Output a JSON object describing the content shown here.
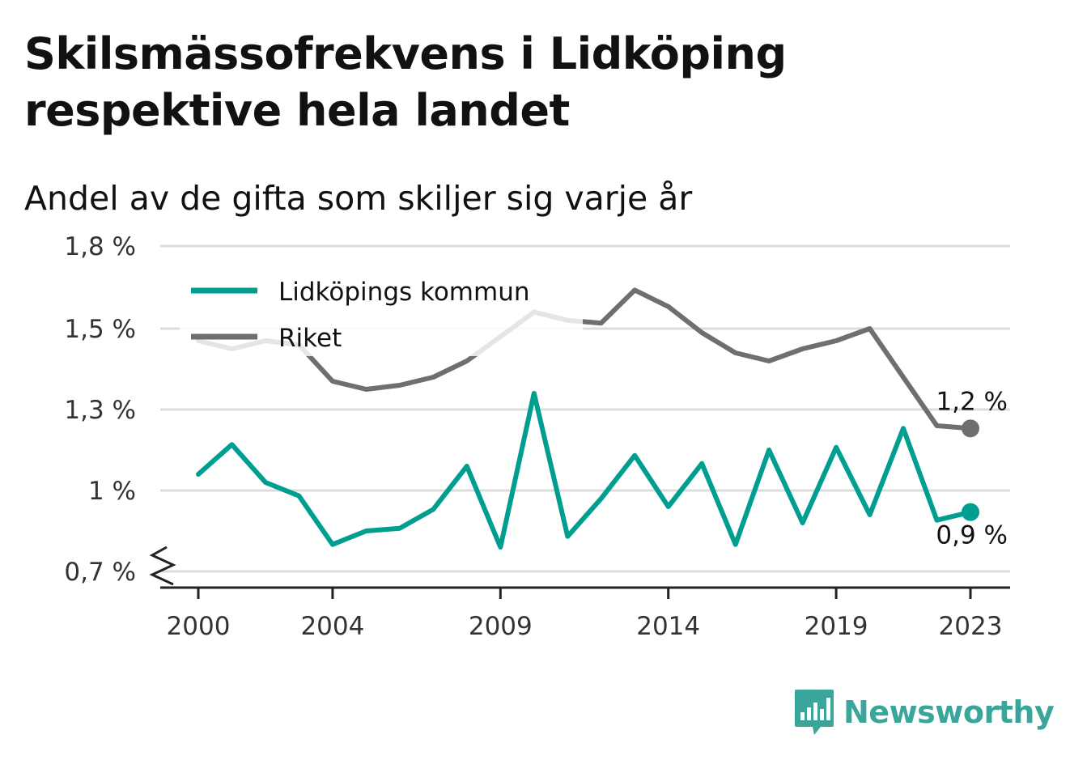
{
  "title": "Skilsmässofrekvens i Lidköping respektive hela landet",
  "subtitle": "Andel av de gifta som skiljer sig varje år",
  "brand": {
    "name": "Newsworthy",
    "color": "#3aa59b",
    "icon": "newsworthy-bar-chart-icon"
  },
  "chart_data": {
    "type": "line",
    "title": "Skilsmässofrekvens i Lidköping respektive hela landet",
    "subtitle": "Andel av de gifta som skiljer sig varje år",
    "xlabel": "",
    "ylabel": "",
    "x": [
      2000,
      2001,
      2002,
      2003,
      2004,
      2005,
      2006,
      2007,
      2008,
      2009,
      2010,
      2011,
      2012,
      2013,
      2014,
      2015,
      2016,
      2017,
      2018,
      2019,
      2020,
      2021,
      2022,
      2023
    ],
    "x_ticks": [
      2000,
      2004,
      2009,
      2014,
      2019,
      2023
    ],
    "x_tick_labels": [
      "2000",
      "2004",
      "2009",
      "2014",
      "2019",
      "2023"
    ],
    "ylim": [
      0.7,
      1.8
    ],
    "y_axis_break": true,
    "y_ticks": [
      0.7,
      1.0,
      1.3,
      1.5,
      1.8
    ],
    "y_tick_labels": [
      "0,7 %",
      "1 %",
      "1,3 %",
      "1,5 %",
      "1,8 %"
    ],
    "grid": true,
    "legend": "top-left",
    "series": [
      {
        "name": "Lidköpings kommun",
        "color": "#009e91",
        "values": [
          1.06,
          1.17,
          1.03,
          0.98,
          0.8,
          0.85,
          0.86,
          0.93,
          1.09,
          0.79,
          1.34,
          0.83,
          0.97,
          1.13,
          0.94,
          1.1,
          0.8,
          1.15,
          0.88,
          1.16,
          0.91,
          1.23,
          0.89,
          0.92
        ],
        "end_label": "0,9 %"
      },
      {
        "name": "Riket",
        "color": "#6e6e73",
        "values": [
          1.47,
          1.45,
          1.47,
          1.46,
          1.37,
          1.35,
          1.36,
          1.38,
          1.42,
          1.48,
          1.56,
          1.53,
          1.52,
          1.64,
          1.58,
          1.49,
          1.44,
          1.42,
          1.45,
          1.47,
          1.5,
          1.38,
          1.24,
          1.23
        ],
        "end_label": "1,2 %"
      }
    ]
  }
}
